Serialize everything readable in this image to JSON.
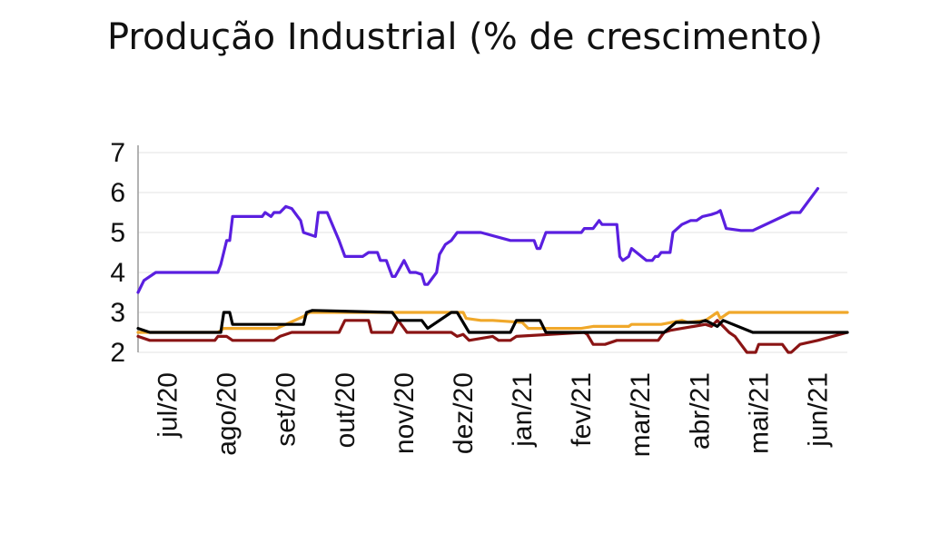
{
  "chart_data": {
    "type": "line",
    "title": "Produção Industrial (% de crescimento)",
    "xlabel": "",
    "ylabel": "",
    "x_tick_labels": [
      "jul/20",
      "ago/20",
      "set/20",
      "out/20",
      "nov/20",
      "dez/20",
      "jan/21",
      "fev/21",
      "mar/21",
      "abr/21",
      "mai/21",
      "jun/21"
    ],
    "y_tick_labels": [
      "2",
      "3",
      "4",
      "5",
      "6",
      "7"
    ],
    "ylim": [
      2,
      7
    ],
    "xlim": [
      0,
      12
    ],
    "grid": "horizontal",
    "legend": "none",
    "series": [
      {
        "color": "#5a1fe0",
        "x": [
          0.0,
          0.1,
          0.3,
          1.35,
          1.4,
          1.5,
          1.55,
          1.6,
          2.1,
          2.15,
          2.25,
          2.3,
          2.4,
          2.5,
          2.6,
          2.7,
          2.75,
          2.8,
          3.0,
          3.05,
          3.2,
          3.4,
          3.5,
          3.8,
          3.9,
          4.05,
          4.1,
          4.2,
          4.25,
          4.3,
          4.35,
          4.5,
          4.6,
          4.7,
          4.8,
          4.85,
          4.9,
          5.05,
          5.1,
          5.2,
          5.3,
          5.4,
          5.5,
          5.6,
          5.8,
          6.3,
          6.35,
          6.7,
          6.75,
          6.8,
          6.85,
          6.9,
          7.0,
          7.5,
          7.55,
          7.7,
          7.8,
          7.85,
          7.9,
          8.1,
          8.15,
          8.2,
          8.3,
          8.35,
          8.6,
          8.7,
          8.75,
          8.8,
          8.85,
          9.0,
          9.05,
          9.2,
          9.35,
          9.45,
          9.5,
          9.55,
          9.7,
          9.8,
          9.85,
          9.95,
          10.2,
          10.3,
          10.35,
          10.4,
          11.05,
          11.1,
          11.2,
          11.5
        ],
        "values": [
          3.5,
          3.8,
          4.0,
          4.0,
          4.2,
          4.8,
          4.8,
          5.4,
          5.4,
          5.5,
          5.4,
          5.5,
          5.5,
          5.65,
          5.6,
          5.4,
          5.3,
          5.0,
          4.9,
          5.5,
          5.5,
          4.8,
          4.4,
          4.4,
          4.5,
          4.5,
          4.3,
          4.3,
          4.1,
          3.9,
          3.9,
          4.3,
          4.0,
          4.0,
          3.95,
          3.7,
          3.7,
          4.0,
          4.45,
          4.7,
          4.8,
          5.0,
          5.0,
          5.0,
          5.0,
          4.8,
          4.8,
          4.8,
          4.6,
          4.6,
          4.8,
          5.0,
          5.0,
          5.0,
          5.1,
          5.1,
          5.3,
          5.2,
          5.2,
          5.2,
          4.4,
          4.3,
          4.4,
          4.6,
          4.3,
          4.3,
          4.4,
          4.4,
          4.5,
          4.5,
          5.0,
          5.2,
          5.3,
          5.3,
          5.35,
          5.4,
          5.45,
          5.5,
          5.55,
          5.1,
          5.05,
          5.05,
          5.05,
          5.05,
          5.5,
          5.5,
          5.5,
          6.1
        ]
      },
      {
        "color": "#f0a82a",
        "x": [
          0.0,
          0.3,
          1.35,
          1.45,
          2.35,
          2.5,
          2.8,
          2.9,
          4.5,
          4.55,
          5.5,
          5.55,
          5.8,
          6.0,
          6.5,
          6.6,
          7.5,
          7.7,
          8.3,
          8.35,
          8.85,
          9.2,
          9.3,
          9.6,
          9.7,
          9.8,
          9.85,
          9.9,
          10.0,
          12.0
        ],
        "values": [
          2.5,
          2.5,
          2.5,
          2.6,
          2.6,
          2.7,
          2.9,
          3.0,
          3.0,
          3.0,
          3.0,
          2.85,
          2.8,
          2.8,
          2.75,
          2.6,
          2.6,
          2.65,
          2.65,
          2.7,
          2.7,
          2.8,
          2.75,
          2.8,
          2.9,
          3.0,
          2.85,
          2.9,
          3.0,
          3.0
        ]
      },
      {
        "color": "#8a1414",
        "x": [
          0.0,
          0.2,
          1.3,
          1.35,
          1.5,
          1.6,
          2.3,
          2.4,
          2.6,
          3.4,
          3.5,
          3.9,
          3.95,
          4.3,
          4.4,
          4.5,
          4.55,
          5.3,
          5.4,
          5.5,
          5.6,
          6.0,
          6.1,
          6.3,
          6.4,
          7.55,
          7.6,
          7.7,
          7.8,
          7.9,
          8.1,
          8.8,
          8.9,
          9.0,
          9.2,
          9.6,
          9.7,
          9.8,
          10.0,
          10.1,
          10.3,
          10.45,
          10.5,
          10.9,
          11.0,
          11.05,
          11.2,
          11.5,
          12.0
        ],
        "values": [
          2.4,
          2.3,
          2.3,
          2.4,
          2.4,
          2.3,
          2.3,
          2.4,
          2.5,
          2.5,
          2.8,
          2.8,
          2.5,
          2.5,
          2.8,
          2.6,
          2.5,
          2.5,
          2.4,
          2.45,
          2.3,
          2.4,
          2.3,
          2.3,
          2.4,
          2.5,
          2.45,
          2.2,
          2.2,
          2.2,
          2.3,
          2.3,
          2.5,
          2.55,
          2.6,
          2.7,
          2.65,
          2.8,
          2.5,
          2.4,
          2.0,
          2.0,
          2.2,
          2.2,
          2.0,
          2.0,
          2.2,
          2.3,
          2.5
        ]
      },
      {
        "color": "#000000",
        "x": [
          0.0,
          0.2,
          1.4,
          1.45,
          1.55,
          1.6,
          2.1,
          2.2,
          2.8,
          2.85,
          2.95,
          4.3,
          4.4,
          4.8,
          4.9,
          5.3,
          5.4,
          5.6,
          5.8,
          6.3,
          6.4,
          6.8,
          6.9,
          8.3,
          8.4,
          8.9,
          9.1,
          9.5,
          9.6,
          9.8,
          9.9,
          10.4,
          12.0
        ],
        "values": [
          2.6,
          2.5,
          2.5,
          3.0,
          3.0,
          2.7,
          2.7,
          2.7,
          2.7,
          3.0,
          3.05,
          3.0,
          2.8,
          2.8,
          2.6,
          3.0,
          3.0,
          2.5,
          2.5,
          2.5,
          2.8,
          2.8,
          2.5,
          2.5,
          2.5,
          2.5,
          2.75,
          2.75,
          2.8,
          2.65,
          2.8,
          2.5,
          2.5
        ]
      }
    ]
  }
}
